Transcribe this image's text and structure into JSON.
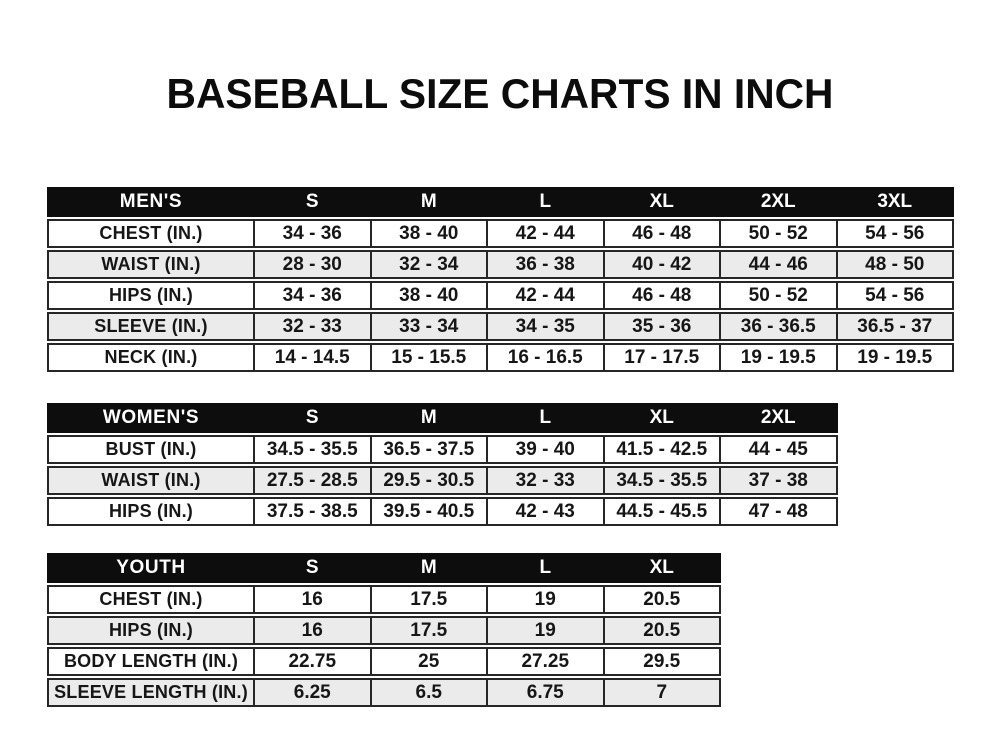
{
  "title": "BASEBALL SIZE CHARTS IN INCH",
  "colors": {
    "background": "#ffffff",
    "header_bg": "#0d0d0d",
    "header_text": "#ffffff",
    "row_bg": "#ffffff",
    "row_alt_bg": "#ebebeb",
    "border": "#262626",
    "text": "#161616"
  },
  "chart_data": [
    {
      "type": "table",
      "title": "MEN'S",
      "columns": [
        "S",
        "M",
        "L",
        "XL",
        "2XL",
        "3XL"
      ],
      "rows": [
        {
          "label": "CHEST (IN.)",
          "values": [
            "34 - 36",
            "38 - 40",
            "42 - 44",
            "46 - 48",
            "50 - 52",
            "54 - 56"
          ]
        },
        {
          "label": "WAIST (IN.)",
          "values": [
            "28 - 30",
            "32 - 34",
            "36 - 38",
            "40 - 42",
            "44 - 46",
            "48 - 50"
          ]
        },
        {
          "label": "HIPS (IN.)",
          "values": [
            "34 - 36",
            "38 - 40",
            "42 - 44",
            "46 - 48",
            "50 - 52",
            "54 - 56"
          ]
        },
        {
          "label": "SLEEVE (IN.)",
          "values": [
            "32 - 33",
            "33 - 34",
            "34 - 35",
            "35 - 36",
            "36 - 36.5",
            "36.5 - 37"
          ]
        },
        {
          "label": "NECK (IN.)",
          "values": [
            "14 - 14.5",
            "15 - 15.5",
            "16 - 16.5",
            "17 - 17.5",
            "19 - 19.5",
            "19 - 19.5"
          ]
        }
      ]
    },
    {
      "type": "table",
      "title": "WOMEN'S",
      "columns": [
        "S",
        "M",
        "L",
        "XL",
        "2XL"
      ],
      "rows": [
        {
          "label": "BUST (IN.)",
          "values": [
            "34.5 - 35.5",
            "36.5 - 37.5",
            "39 - 40",
            "41.5 - 42.5",
            "44 - 45"
          ]
        },
        {
          "label": "WAIST (IN.)",
          "values": [
            "27.5 - 28.5",
            "29.5 - 30.5",
            "32 - 33",
            "34.5 - 35.5",
            "37 - 38"
          ]
        },
        {
          "label": "HIPS (IN.)",
          "values": [
            "37.5 - 38.5",
            "39.5 - 40.5",
            "42 - 43",
            "44.5 - 45.5",
            "47 - 48"
          ]
        }
      ]
    },
    {
      "type": "table",
      "title": "YOUTH",
      "columns": [
        "S",
        "M",
        "L",
        "XL"
      ],
      "rows": [
        {
          "label": "CHEST (IN.)",
          "values": [
            "16",
            "17.5",
            "19",
            "20.5"
          ]
        },
        {
          "label": "HIPS (IN.)",
          "values": [
            "16",
            "17.5",
            "19",
            "20.5"
          ]
        },
        {
          "label": "BODY LENGTH (IN.)",
          "values": [
            "22.75",
            "25",
            "27.25",
            "29.5"
          ]
        },
        {
          "label": "SLEEVE LENGTH (IN.)",
          "values": [
            "6.25",
            "6.5",
            "6.75",
            "7"
          ]
        }
      ]
    }
  ]
}
